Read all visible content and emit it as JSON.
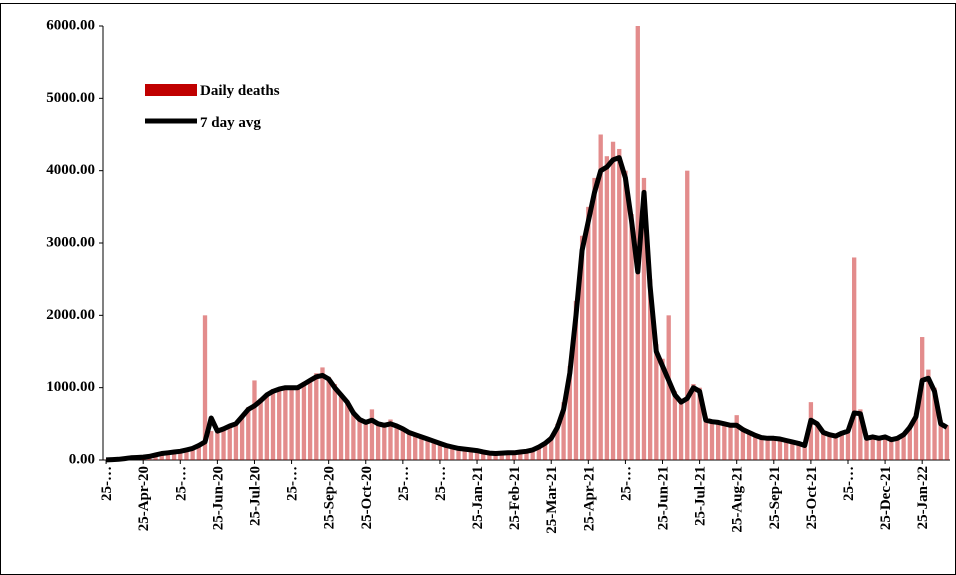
{
  "chart_data": {
    "type": "bar-line",
    "categories": [
      "25-…",
      null,
      null,
      null,
      null,
      null,
      "25-Apr-20",
      null,
      null,
      null,
      null,
      null,
      "25-…",
      null,
      null,
      null,
      null,
      null,
      "25-Jun-20",
      null,
      null,
      null,
      null,
      null,
      "25-Jul-20",
      null,
      null,
      null,
      null,
      null,
      "25-…",
      null,
      null,
      null,
      null,
      null,
      "25-Sep-20",
      null,
      null,
      null,
      null,
      null,
      "25-Oct-20",
      null,
      null,
      null,
      null,
      null,
      "25-…",
      null,
      null,
      null,
      null,
      null,
      "25-…",
      null,
      null,
      null,
      null,
      null,
      "25-Jan-21",
      null,
      null,
      null,
      null,
      null,
      "25-Feb-21",
      null,
      null,
      null,
      null,
      null,
      "25-Mar-21",
      null,
      null,
      null,
      null,
      null,
      "25-Apr-21",
      null,
      null,
      null,
      null,
      null,
      "25-…",
      null,
      null,
      null,
      null,
      null,
      "25-Jun-21",
      null,
      null,
      null,
      null,
      null,
      "25-Jul-21",
      null,
      null,
      null,
      null,
      null,
      "25-Aug-21",
      null,
      null,
      null,
      null,
      null,
      "25-Sep-21",
      null,
      null,
      null,
      null,
      null,
      "25-Oct-21",
      null,
      null,
      null,
      null,
      null,
      "25-…",
      null,
      null,
      null,
      null,
      null,
      "25-Dec-21",
      null,
      null,
      null,
      null,
      null,
      "25-Jan-22",
      null,
      null,
      null,
      null
    ],
    "series": [
      {
        "name": "Daily deaths",
        "color": "#c00000",
        "values": [
          3,
          6,
          12,
          25,
          35,
          40,
          45,
          60,
          80,
          95,
          110,
          120,
          130,
          150,
          170,
          220,
          2000,
          400,
          420,
          450,
          480,
          520,
          620,
          730,
          1100,
          850,
          920,
          980,
          1000,
          1020,
          1030,
          1000,
          1080,
          1120,
          1200,
          1280,
          1150,
          1050,
          920,
          820,
          680,
          580,
          540,
          700,
          520,
          500,
          560,
          490,
          450,
          400,
          360,
          330,
          300,
          270,
          240,
          210,
          190,
          170,
          160,
          150,
          140,
          120,
          100,
          95,
          100,
          105,
          105,
          115,
          125,
          150,
          190,
          250,
          330,
          500,
          800,
          1300,
          2200,
          3100,
          3500,
          3900,
          4500,
          4200,
          4400,
          4300,
          4000,
          3400,
          6000,
          3900,
          2500,
          1600,
          1400,
          2000,
          950,
          850,
          4000,
          1050,
          1000,
          600,
          560,
          540,
          520,
          500,
          620,
          450,
          400,
          360,
          330,
          320,
          320,
          310,
          290,
          270,
          250,
          220,
          800,
          520,
          400,
          370,
          350,
          390,
          420,
          2800,
          700,
          330,
          340,
          320,
          340,
          300,
          320,
          370,
          480,
          650,
          1700,
          1250,
          1000,
          550,
          480
        ]
      },
      {
        "name": "7 day avg",
        "color": "#000000",
        "values": [
          2,
          5,
          10,
          20,
          30,
          35,
          40,
          50,
          70,
          90,
          100,
          110,
          120,
          140,
          160,
          200,
          250,
          580,
          400,
          430,
          470,
          500,
          600,
          700,
          750,
          820,
          900,
          950,
          980,
          1000,
          1000,
          1000,
          1050,
          1100,
          1150,
          1170,
          1120,
          1000,
          900,
          800,
          650,
          560,
          520,
          550,
          500,
          480,
          500,
          470,
          430,
          380,
          350,
          320,
          290,
          260,
          230,
          200,
          180,
          160,
          150,
          140,
          130,
          110,
          95,
          90,
          95,
          100,
          100,
          110,
          120,
          140,
          180,
          230,
          300,
          450,
          700,
          1200,
          2000,
          2900,
          3300,
          3700,
          4000,
          4050,
          4150,
          4180,
          3900,
          3300,
          2600,
          3700,
          2400,
          1500,
          1300,
          1100,
          900,
          800,
          850,
          1000,
          950,
          550,
          530,
          520,
          500,
          480,
          480,
          420,
          380,
          340,
          310,
          300,
          300,
          290,
          270,
          250,
          230,
          200,
          550,
          500,
          380,
          350,
          330,
          370,
          400,
          650,
          640,
          300,
          320,
          300,
          320,
          280,
          300,
          350,
          450,
          600,
          1100,
          1130,
          950,
          500,
          450
        ]
      }
    ],
    "ylim": [
      0,
      6000
    ],
    "yticks": [
      {
        "value": 0,
        "label": "0.00"
      },
      {
        "value": 1000,
        "label": "1000.00"
      },
      {
        "value": 2000,
        "label": "2000.00"
      },
      {
        "value": 3000,
        "label": "3000.00"
      },
      {
        "value": 4000,
        "label": "4000.00"
      },
      {
        "value": 5000,
        "label": "5000.00"
      },
      {
        "value": 6000,
        "label": "6000.00"
      }
    ]
  }
}
